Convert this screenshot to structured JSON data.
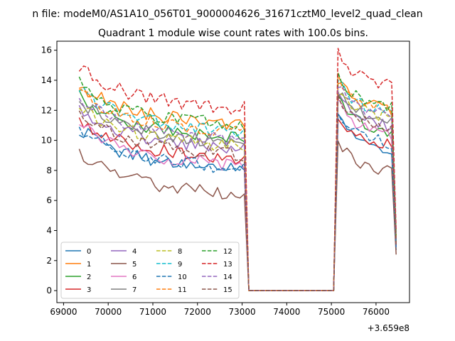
{
  "figure": {
    "suptitle": "n file: modeM0/AS1A10_056T01_9000004626_31671cztM0_level2_quad_clean",
    "offset_label": "+3.659e8"
  },
  "chart_data": {
    "type": "line",
    "title": "Quadrant 1 module wise count rates with 100.0s bins.",
    "xlabel": "",
    "ylabel": "",
    "xlim": [
      68850,
      76750
    ],
    "ylim": [
      -0.8,
      16.6
    ],
    "x_offset": 365900000,
    "x_ticks": [
      69000,
      70000,
      71000,
      72000,
      73000,
      74000,
      75000,
      76000
    ],
    "y_ticks": [
      0,
      2,
      4,
      6,
      8,
      10,
      12,
      14,
      16
    ],
    "grid": false,
    "legend": {
      "position": "lower-left",
      "columns": 4
    },
    "segments": [
      {
        "x_start": 69350,
        "x_end": 73050,
        "step": 100
      },
      {
        "x_start": 73150,
        "x_end": 75050,
        "step": 100
      },
      {
        "x_start": 75150,
        "x_end": 76450,
        "step": 100
      }
    ],
    "series": [
      {
        "name": "0",
        "color": "#1f77b4",
        "dash": "solid",
        "level1": 8.6,
        "level2": 10.1,
        "drop": 2.7
      },
      {
        "name": "1",
        "color": "#ff7f0e",
        "dash": "solid",
        "level1": 11.6,
        "level2": 12.7,
        "drop": 3.6
      },
      {
        "name": "2",
        "color": "#2ca02c",
        "dash": "solid",
        "level1": 10.7,
        "level2": 11.3,
        "drop": 3.3
      },
      {
        "name": "3",
        "color": "#d62728",
        "dash": "solid",
        "level1": 9.3,
        "level2": 10.4,
        "drop": 3.0
      },
      {
        "name": "4",
        "color": "#9467bd",
        "dash": "solid",
        "level1": 10.0,
        "level2": 11.6,
        "drop": 3.2
      },
      {
        "name": "5",
        "color": "#8c564b",
        "dash": "solid",
        "level1": 7.0,
        "level2": 8.6,
        "drop": 2.4
      },
      {
        "name": "6",
        "color": "#e377c2",
        "dash": "solid",
        "level1": 8.9,
        "level2": 11.1,
        "drop": 2.9
      },
      {
        "name": "7",
        "color": "#7f7f7f",
        "dash": "solid",
        "level1": 10.4,
        "level2": 11.9,
        "drop": 3.2
      },
      {
        "name": "8",
        "color": "#bcbd22",
        "dash": "dashed",
        "level1": 10.2,
        "level2": 12.2,
        "drop": 3.3
      },
      {
        "name": "9",
        "color": "#17becf",
        "dash": "dashed",
        "level1": 11.2,
        "level2": 12.6,
        "drop": 3.4
      },
      {
        "name": "10",
        "color": "#1f77b4",
        "dash": "dashed",
        "level1": 8.7,
        "level2": 10.5,
        "drop": 2.8
      },
      {
        "name": "11",
        "color": "#ff7f0e",
        "dash": "dashed",
        "level1": 11.1,
        "level2": 12.8,
        "drop": 3.5
      },
      {
        "name": "12",
        "color": "#2ca02c",
        "dash": "dashed",
        "level1": 11.6,
        "level2": 12.9,
        "drop": 3.7
      },
      {
        "name": "13",
        "color": "#d62728",
        "dash": "dashed",
        "level1": 12.7,
        "level2": 14.4,
        "drop": 4.0
      },
      {
        "name": "14",
        "color": "#9467bd",
        "dash": "dashed",
        "level1": 10.6,
        "level2": 12.3,
        "drop": 3.3
      },
      {
        "name": "15",
        "color": "#8c564b",
        "dash": "dashed",
        "level1": 9.6,
        "level2": 11.6,
        "drop": 3.0
      }
    ]
  }
}
